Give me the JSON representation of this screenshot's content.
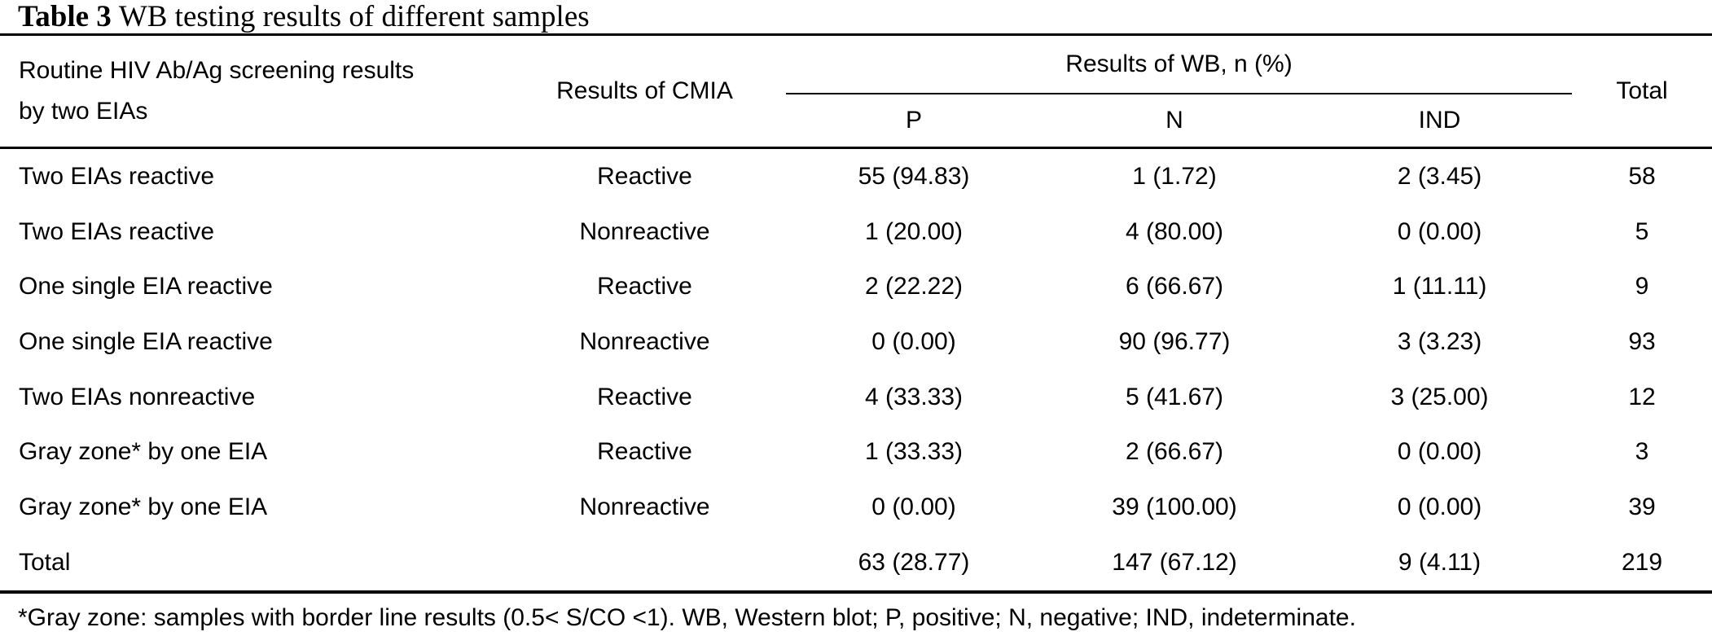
{
  "title": {
    "label": "Table 3",
    "text": "WB testing results of different samples"
  },
  "table": {
    "header": {
      "screening_line1": "Routine HIV Ab/Ag screening results",
      "screening_line2": "by two EIAs",
      "cmia": "Results of CMIA",
      "wb_group": "Results of WB, n (%)",
      "wb_sub": [
        "P",
        "N",
        "IND"
      ],
      "total": "Total"
    },
    "rows": [
      {
        "screening": "Two EIAs reactive",
        "cmia": "Reactive",
        "p": "55 (94.83)",
        "n": "1 (1.72)",
        "ind": "2 (3.45)",
        "total": "58"
      },
      {
        "screening": "Two EIAs reactive",
        "cmia": "Nonreactive",
        "p": "1 (20.00)",
        "n": "4 (80.00)",
        "ind": "0 (0.00)",
        "total": "5"
      },
      {
        "screening": "One single EIA reactive",
        "cmia": "Reactive",
        "p": "2 (22.22)",
        "n": "6 (66.67)",
        "ind": "1 (11.11)",
        "total": "9"
      },
      {
        "screening": "One single EIA reactive",
        "cmia": "Nonreactive",
        "p": "0 (0.00)",
        "n": "90 (96.77)",
        "ind": "3 (3.23)",
        "total": "93"
      },
      {
        "screening": "Two EIAs nonreactive",
        "cmia": "Reactive",
        "p": "4 (33.33)",
        "n": "5 (41.67)",
        "ind": "3 (25.00)",
        "total": "12"
      },
      {
        "screening": "Gray zone* by one EIA",
        "cmia": "Reactive",
        "p": "1 (33.33)",
        "n": "2 (66.67)",
        "ind": "0 (0.00)",
        "total": "3"
      },
      {
        "screening": "Gray zone* by one EIA",
        "cmia": "Nonreactive",
        "p": "0 (0.00)",
        "n": "39 (100.00)",
        "ind": "0 (0.00)",
        "total": "39"
      },
      {
        "screening": "Total",
        "cmia": "",
        "p": "63 (28.77)",
        "n": "147 (67.12)",
        "ind": "9 (4.11)",
        "total": "219"
      }
    ],
    "footnote": "*Gray zone: samples with border line results (0.5< S/CO <1). WB, Western blot; P, positive; N, negative; IND, indeterminate.",
    "colors": {
      "text": "#000000",
      "background": "#ffffff",
      "rule": "#000000"
    }
  }
}
